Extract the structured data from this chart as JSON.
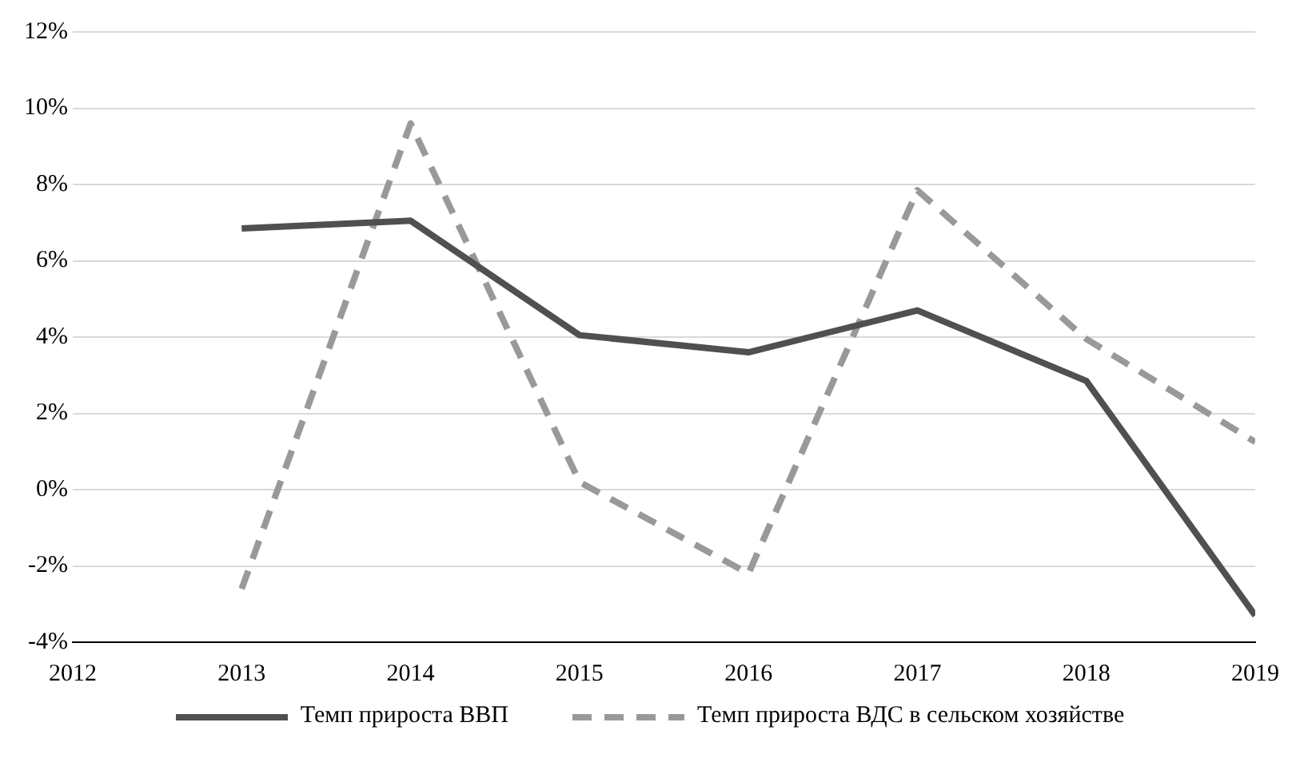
{
  "chart_data": {
    "type": "line",
    "x": [
      2013,
      2014,
      2015,
      2016,
      2017,
      2018,
      2019
    ],
    "series": [
      {
        "name": "Темп прироста ВВП",
        "color": "#505050",
        "values": [
          6.85,
          7.05,
          4.05,
          3.6,
          4.7,
          2.85,
          -3.3
        ],
        "line_style": "solid"
      },
      {
        "name": "Темп прироста ВДС в сельском хозяйстве",
        "color": "#999999",
        "values": [
          -2.6,
          9.6,
          0.2,
          -2.2,
          7.85,
          3.95,
          1.25
        ],
        "line_style": "dashed"
      }
    ],
    "xlim": [
      2012,
      2019
    ],
    "xticks": [
      2012,
      2013,
      2014,
      2015,
      2016,
      2017,
      2018,
      2019
    ],
    "ylim": [
      -4,
      12
    ],
    "yticks": [
      {
        "value": -4,
        "label": "-4%"
      },
      {
        "value": -2,
        "label": "-2%"
      },
      {
        "value": 0,
        "label": "0%"
      },
      {
        "value": 2,
        "label": "2%"
      },
      {
        "value": 4,
        "label": "4%"
      },
      {
        "value": 6,
        "label": "6%"
      },
      {
        "value": 8,
        "label": "8%"
      },
      {
        "value": 10,
        "label": "10%"
      },
      {
        "value": 12,
        "label": "12%"
      }
    ],
    "grid": "y",
    "legend": "bottom",
    "marker": "none"
  }
}
